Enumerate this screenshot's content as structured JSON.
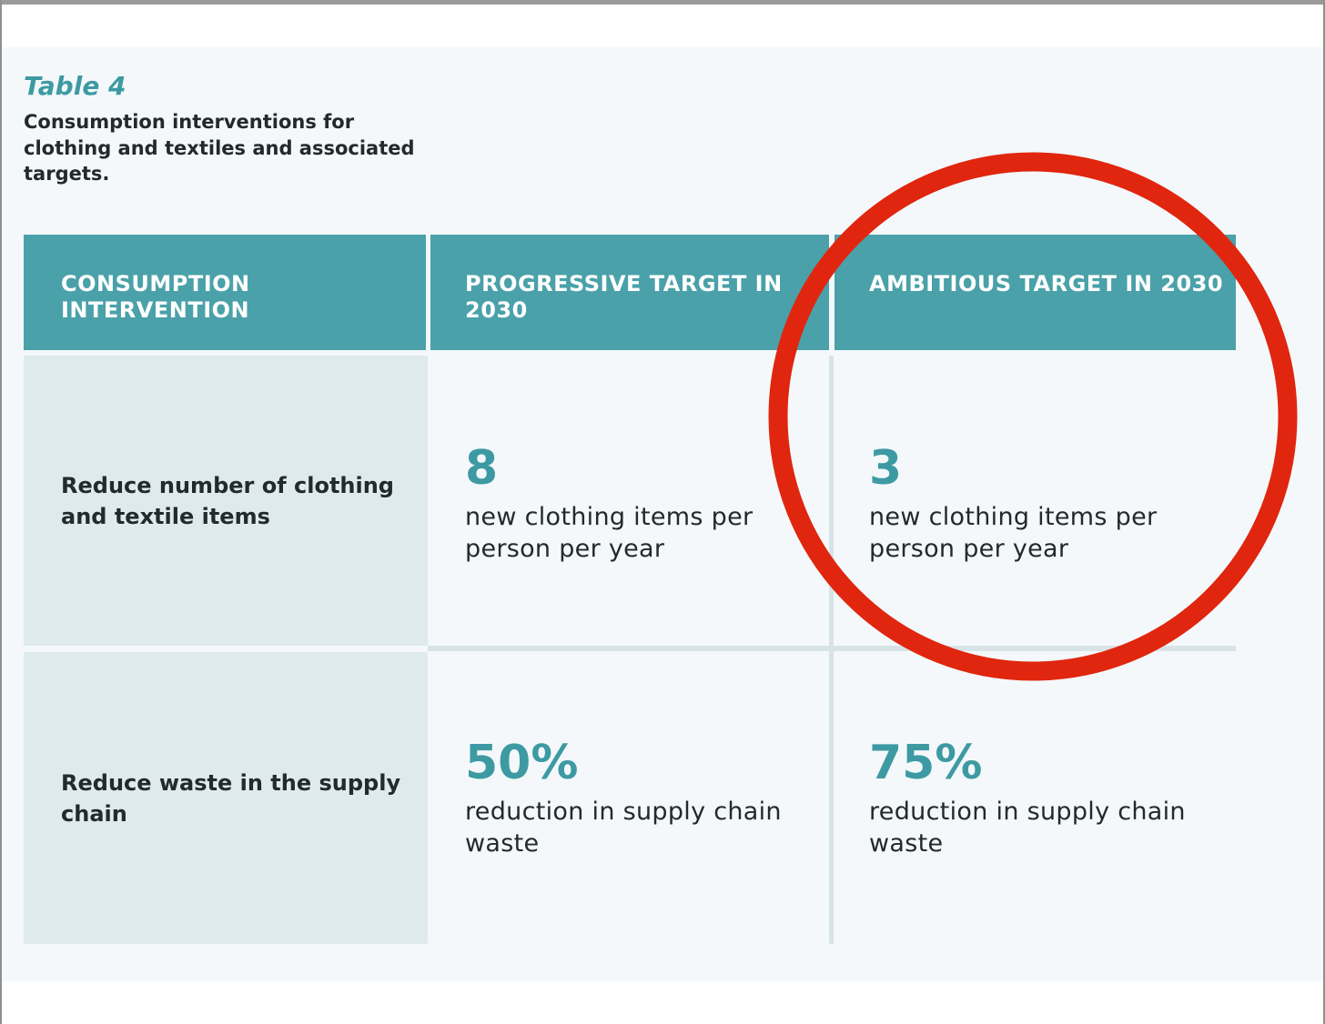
{
  "caption": {
    "number": "Table 4",
    "text": "Consumption interventions for clothing and textiles and associated targets."
  },
  "table": {
    "headers": [
      "CONSUMPTION INTERVENTION",
      "PROGRESSIVE TARGET IN 2030",
      "AMBITIOUS TARGET IN 2030"
    ],
    "rows": [
      {
        "intervention": "Reduce number of clothing and textile items",
        "progressive_value": "8",
        "progressive_desc": "new clothing items per person per year",
        "ambitious_value": "3",
        "ambitious_desc": "new clothing items per person per year"
      },
      {
        "intervention": "Reduce waste in the supply chain",
        "progressive_value": "50%",
        "progressive_desc": "reduction in supply chain waste",
        "ambitious_value": "75%",
        "ambitious_desc": "reduction in supply chain waste"
      }
    ]
  },
  "colors": {
    "header_bg": "#4aa1a9",
    "accent_text": "#3d9aa3",
    "label_cell_bg": "#dfeaed",
    "panel_bg": "#f4f8fa",
    "highlight_circle": "#e0260e"
  }
}
